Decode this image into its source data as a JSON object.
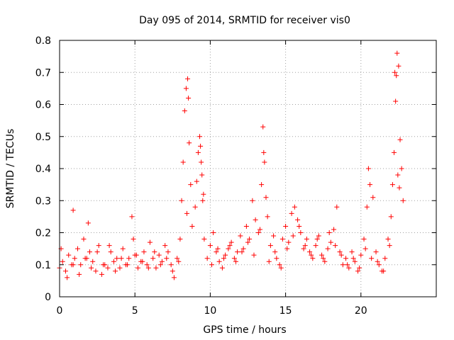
{
  "chart_data": {
    "type": "scatter",
    "title": "Day 095 of 2014, SRMTID for receiver vis0",
    "xlabel": "GPS time / hours",
    "ylabel": "SRMTID / TECUs",
    "xlim": [
      0,
      25
    ],
    "ylim": [
      0,
      0.8
    ],
    "xticks": [
      0,
      5,
      10,
      15,
      20
    ],
    "xtick_labels": [
      "0",
      "5",
      "10",
      "15",
      "20"
    ],
    "yticks": [
      0,
      0.1,
      0.2,
      0.3,
      0.4,
      0.5,
      0.6,
      0.7,
      0.8
    ],
    "ytick_labels": [
      "0",
      "0.1",
      "0.2",
      "0.3",
      "0.4",
      "0.5",
      "0.6",
      "0.7",
      "0.8"
    ],
    "grid": true,
    "marker": "+",
    "color": "#ff0000",
    "series": [
      {
        "name": "SRMTID",
        "x": [
          0.0,
          0.2,
          0.4,
          0.6,
          0.8,
          0.9,
          1.0,
          1.2,
          1.4,
          1.6,
          1.8,
          1.9,
          2.0,
          2.2,
          2.4,
          2.6,
          2.8,
          3.0,
          3.2,
          3.4,
          3.6,
          3.8,
          4.0,
          4.2,
          4.4,
          4.6,
          4.8,
          4.9,
          5.0,
          5.2,
          5.4,
          5.6,
          5.8,
          6.0,
          6.2,
          6.4,
          6.6,
          6.8,
          7.0,
          7.2,
          7.4,
          7.6,
          7.8,
          8.0,
          8.1,
          8.2,
          8.3,
          8.4,
          8.5,
          8.6,
          8.7,
          8.8,
          9.0,
          9.1,
          9.2,
          9.3,
          9.4,
          9.5,
          9.6,
          9.8,
          10.0,
          10.2,
          10.4,
          10.6,
          10.8,
          11.0,
          11.2,
          11.4,
          11.6,
          11.8,
          12.0,
          12.2,
          12.4,
          12.6,
          12.8,
          13.0,
          13.2,
          13.4,
          13.5,
          13.6,
          13.7,
          13.8,
          14.0,
          14.2,
          14.4,
          14.6,
          14.8,
          15.0,
          15.2,
          15.4,
          15.6,
          15.8,
          16.0,
          16.2,
          16.4,
          16.6,
          16.8,
          17.0,
          17.2,
          17.4,
          17.6,
          17.8,
          18.0,
          18.2,
          18.4,
          18.6,
          18.8,
          19.0,
          19.2,
          19.4,
          19.6,
          19.8,
          20.0,
          20.2,
          20.4,
          20.5,
          20.6,
          20.8,
          21.0,
          21.2,
          21.4,
          21.6,
          21.8,
          22.0,
          22.1,
          22.2,
          22.3,
          22.4,
          22.5,
          22.6,
          22.7,
          22.8,
          0.1,
          0.5,
          0.9,
          1.3,
          1.7,
          2.1,
          2.5,
          2.9,
          3.3,
          3.7,
          4.1,
          4.5,
          5.1,
          5.5,
          5.9,
          6.3,
          6.7,
          7.1,
          7.5,
          7.9,
          8.45,
          8.55,
          9.35,
          9.45,
          9.55,
          10.1,
          10.5,
          10.9,
          11.3,
          11.7,
          12.1,
          12.5,
          12.9,
          13.3,
          13.55,
          13.9,
          14.3,
          14.7,
          15.1,
          15.5,
          15.9,
          16.3,
          16.7,
          17.1,
          17.5,
          17.9,
          18.3,
          18.7,
          19.1,
          19.5,
          19.9,
          20.3,
          20.7,
          21.1,
          21.5,
          21.9,
          22.25,
          22.35,
          22.45,
          22.55
        ],
        "y": [
          0.09,
          0.11,
          0.08,
          0.13,
          0.1,
          0.27,
          0.12,
          0.15,
          0.1,
          0.18,
          0.12,
          0.23,
          0.14,
          0.11,
          0.08,
          0.16,
          0.07,
          0.1,
          0.09,
          0.14,
          0.11,
          0.12,
          0.09,
          0.15,
          0.1,
          0.12,
          0.25,
          0.18,
          0.13,
          0.09,
          0.11,
          0.14,
          0.1,
          0.17,
          0.12,
          0.09,
          0.13,
          0.11,
          0.16,
          0.14,
          0.1,
          0.06,
          0.12,
          0.18,
          0.3,
          0.42,
          0.58,
          0.65,
          0.68,
          0.48,
          0.35,
          0.22,
          0.28,
          0.36,
          0.45,
          0.5,
          0.42,
          0.3,
          0.18,
          0.12,
          0.16,
          0.2,
          0.14,
          0.11,
          0.09,
          0.13,
          0.15,
          0.17,
          0.12,
          0.14,
          0.19,
          0.15,
          0.22,
          0.18,
          0.3,
          0.24,
          0.2,
          0.35,
          0.53,
          0.42,
          0.31,
          0.25,
          0.16,
          0.19,
          0.12,
          0.1,
          0.18,
          0.22,
          0.17,
          0.26,
          0.28,
          0.24,
          0.2,
          0.15,
          0.18,
          0.14,
          0.12,
          0.16,
          0.19,
          0.13,
          0.11,
          0.15,
          0.17,
          0.21,
          0.28,
          0.14,
          0.1,
          0.12,
          0.09,
          0.14,
          0.11,
          0.08,
          0.13,
          0.18,
          0.28,
          0.4,
          0.35,
          0.31,
          0.14,
          0.1,
          0.08,
          0.12,
          0.18,
          0.25,
          0.35,
          0.45,
          0.61,
          0.76,
          0.72,
          0.49,
          0.4,
          0.3,
          0.15,
          0.06,
          0.1,
          0.07,
          0.12,
          0.09,
          0.14,
          0.1,
          0.16,
          0.08,
          0.12,
          0.1,
          0.13,
          0.11,
          0.09,
          0.14,
          0.1,
          0.12,
          0.08,
          0.11,
          0.26,
          0.62,
          0.47,
          0.38,
          0.32,
          0.1,
          0.15,
          0.12,
          0.16,
          0.11,
          0.14,
          0.17,
          0.13,
          0.21,
          0.45,
          0.11,
          0.14,
          0.09,
          0.15,
          0.19,
          0.22,
          0.16,
          0.13,
          0.18,
          0.12,
          0.2,
          0.16,
          0.13,
          0.1,
          0.12,
          0.09,
          0.15,
          0.12,
          0.11,
          0.08,
          0.16,
          0.7,
          0.69,
          0.38,
          0.34
        ]
      }
    ]
  }
}
